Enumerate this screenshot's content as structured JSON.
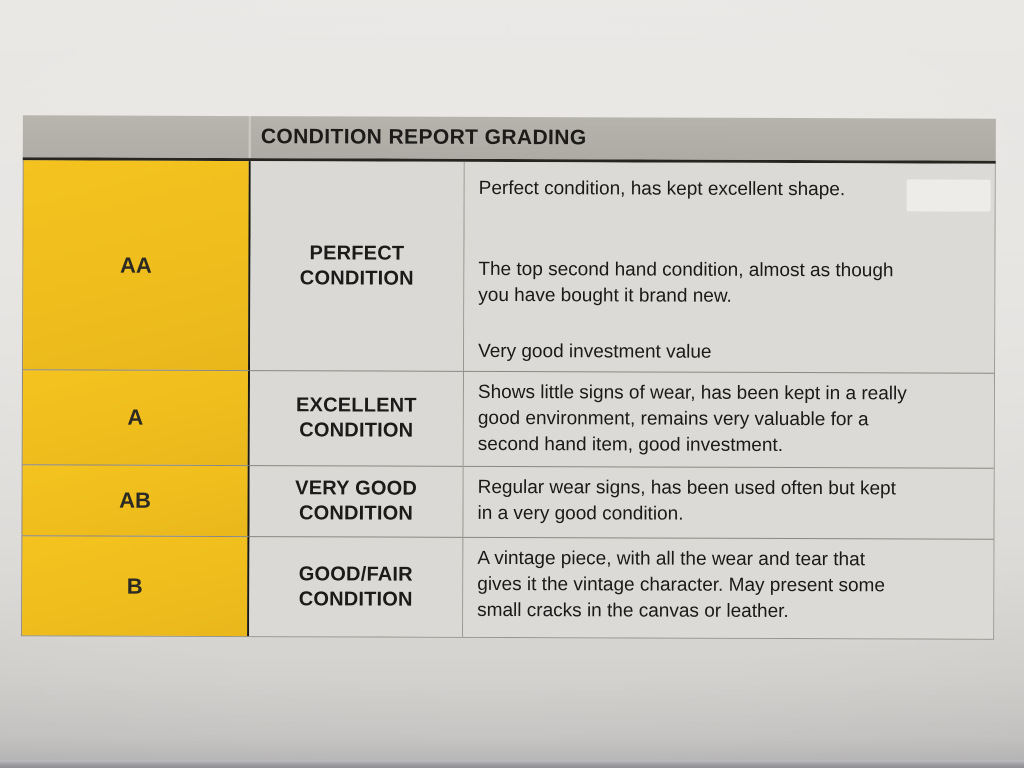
{
  "document": {
    "title": "CONDITION REPORT GRADING",
    "rows": [
      {
        "grade": "AA",
        "condition": "PERFECT\nCONDITION",
        "description_paragraphs": [
          "Perfect condition, has kept excellent shape.",
          "The top second hand condition, almost as though\nyou have bought it brand new.",
          "Very good investment value"
        ]
      },
      {
        "grade": "A",
        "condition": "EXCELLENT\nCONDITION",
        "description_paragraphs": [
          "Shows little signs of wear, has been kept in a really\ngood environment, remains very valuable for a\nsecond hand item, good investment."
        ]
      },
      {
        "grade": "AB",
        "condition": "VERY GOOD\nCONDITION",
        "description_paragraphs": [
          "Regular wear signs, has been used often but kept\nin a very good condition."
        ]
      },
      {
        "grade": "B",
        "condition": "GOOD/FAIR\nCONDITION",
        "description_paragraphs": [
          "A vintage piece, with all the wear and tear that\ngives it the vintage character. May present some\nsmall cracks in the canvas or leather."
        ]
      }
    ],
    "colors": {
      "grade_cell_yellow": "#EFBE1D",
      "header_gray": "#B2AFA8",
      "cell_background": "#DBDAD6",
      "text": "#1C1B19"
    }
  }
}
